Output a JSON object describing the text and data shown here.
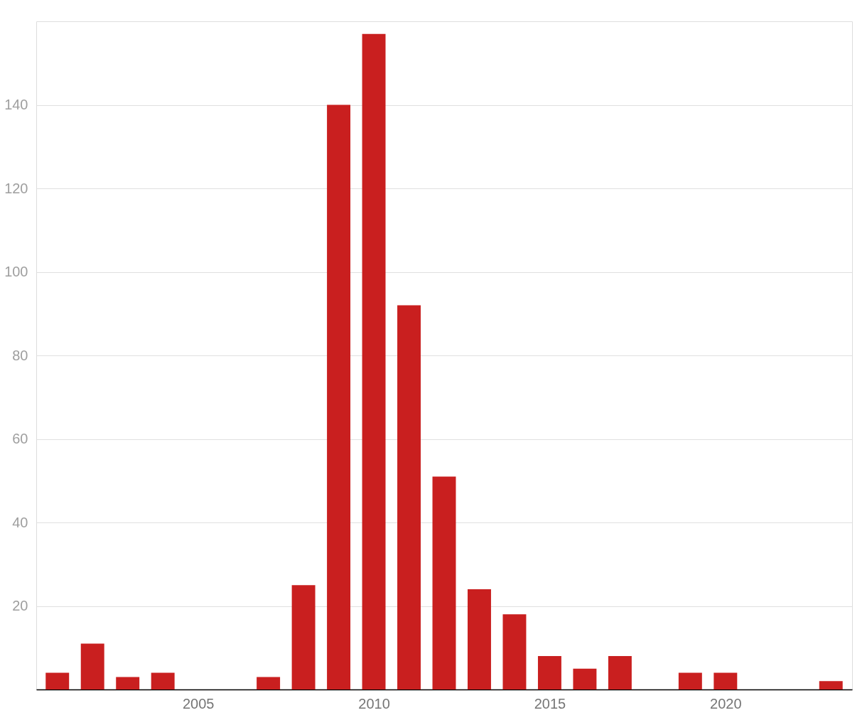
{
  "chart_data": {
    "type": "bar",
    "x": [
      2001,
      2002,
      2003,
      2004,
      2005,
      2006,
      2007,
      2008,
      2009,
      2010,
      2011,
      2012,
      2013,
      2014,
      2015,
      2016,
      2017,
      2018,
      2019,
      2020,
      2021,
      2022,
      2023
    ],
    "values": [
      4,
      11,
      3,
      4,
      0,
      0,
      3,
      25,
      140,
      157,
      92,
      51,
      24,
      18,
      8,
      5,
      8,
      0,
      4,
      4,
      0,
      0,
      2
    ],
    "color": "#c91f1f",
    "xlim": [
      2000.5,
      2023.5
    ],
    "xticks": [
      2005,
      2010,
      2015,
      2020
    ],
    "ylim": [
      0,
      160
    ],
    "yticks": [
      {
        "value": 0,
        "label": null
      },
      20,
      40,
      60,
      80,
      100,
      120,
      140
    ],
    "grid": "y"
  }
}
